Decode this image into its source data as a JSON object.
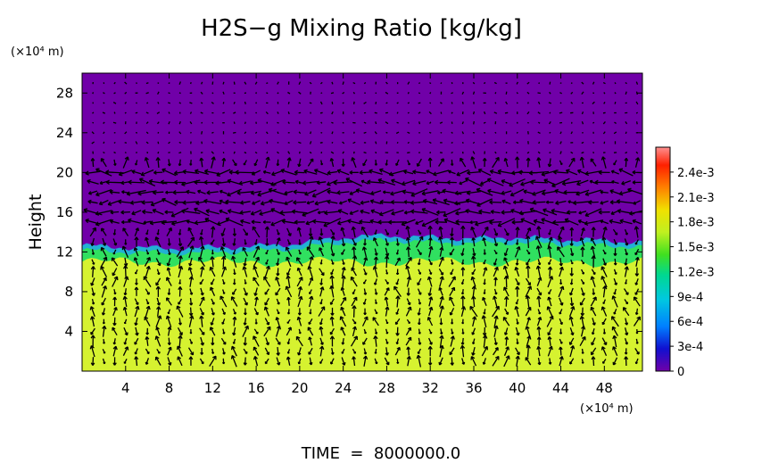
{
  "chart_data": {
    "type": "heatmap",
    "title": "H2S−g Mixing Ratio [kg/kg]",
    "ylabel": "Height",
    "y_unit_label": "(×10⁴ m)",
    "x_unit_label": "(×10⁴ m)",
    "footer": "TIME  =  8000000.0",
    "xlim": [
      0,
      51.5
    ],
    "ylim": [
      0,
      30
    ],
    "x_ticks": [
      "4",
      "8",
      "12",
      "16",
      "20",
      "24",
      "28",
      "32",
      "36",
      "40",
      "44",
      "48"
    ],
    "x_tick_values": [
      4,
      8,
      12,
      16,
      20,
      24,
      28,
      32,
      36,
      40,
      44,
      48
    ],
    "y_ticks": [
      "4",
      "8",
      "12",
      "16",
      "20",
      "24",
      "28"
    ],
    "y_tick_values": [
      4,
      8,
      12,
      16,
      20,
      24,
      28
    ],
    "colorbar": {
      "min": 0,
      "max": 0.0027,
      "labels": [
        "0",
        "3e-4",
        "6e-4",
        "9e-4",
        "1.2e-3",
        "1.5e-3",
        "1.8e-3",
        "2.1e-3",
        "2.4e-3"
      ],
      "values": [
        0,
        0.0003,
        0.0006,
        0.0009,
        0.0012,
        0.0015,
        0.0018,
        0.0021,
        0.0024
      ]
    },
    "regions": [
      {
        "name": "upper layer",
        "value": 0.0,
        "y_range": [
          12.8,
          30
        ]
      },
      {
        "name": "transition layer",
        "value": 0.0012,
        "y_range": [
          11.0,
          12.8
        ]
      },
      {
        "name": "lower layer",
        "value": 0.00175,
        "y_range": [
          0,
          11.0
        ]
      }
    ],
    "interface_height": [
      [
        0,
        12.6
      ],
      [
        4,
        12.4
      ],
      [
        8,
        12.3
      ],
      [
        12,
        12.4
      ],
      [
        16,
        12.5
      ],
      [
        20,
        12.8
      ],
      [
        24,
        13.4
      ],
      [
        28,
        13.6
      ],
      [
        32,
        13.4
      ],
      [
        36,
        13.3
      ],
      [
        40,
        13.4
      ],
      [
        44,
        13.2
      ],
      [
        48,
        13.1
      ],
      [
        51.5,
        12.9
      ]
    ],
    "vector_field": {
      "description": "velocity arrows",
      "rows_y": [
        1,
        2,
        3,
        4,
        5,
        6,
        7,
        8,
        9,
        10,
        11,
        12,
        13,
        14,
        15,
        16,
        17,
        18,
        19,
        20,
        21,
        22,
        23,
        24,
        25,
        26,
        27,
        28,
        29
      ],
      "cols_x": [
        1,
        2,
        3,
        4,
        5,
        6,
        7,
        8,
        9,
        10,
        11,
        12,
        13,
        14,
        15,
        16,
        17,
        18,
        19,
        20,
        21,
        22,
        23,
        24,
        25,
        26,
        27,
        28,
        29,
        30,
        31,
        32,
        33,
        34,
        35,
        36,
        37,
        38,
        39,
        40,
        41,
        42,
        43,
        44,
        45,
        46,
        47,
        48,
        49,
        50,
        51
      ]
    }
  },
  "colors": {
    "upper": "#7000a8",
    "lower": "#d6f230",
    "transition": "#30e060",
    "interface": "#20a8e8",
    "arrow": "#000000"
  },
  "colorbar_stops": [
    "#7000a8",
    "#1010d0",
    "#0080ff",
    "#00c8e0",
    "#00d890",
    "#40e020",
    "#c0f020",
    "#f0e000",
    "#ff8000",
    "#ff2000",
    "#ff8080"
  ]
}
